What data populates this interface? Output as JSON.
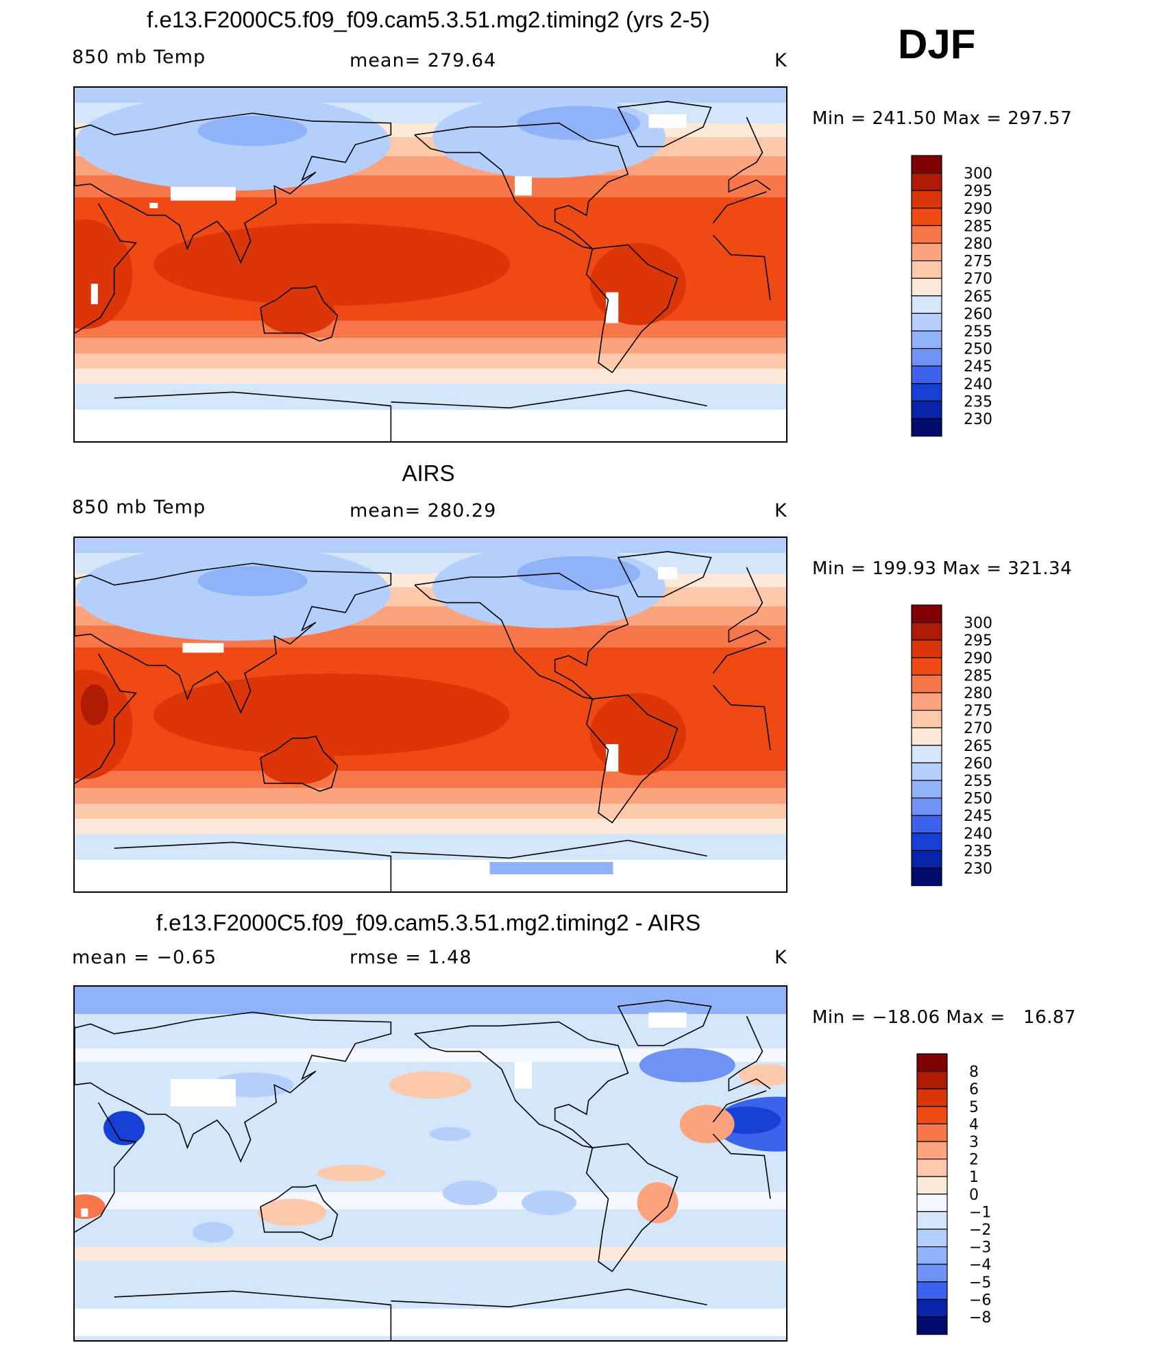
{
  "season": "DJF",
  "panels": [
    {
      "title": "f.e13.F2000C5.f09_f09.cam5.3.51.mg2.timing2 (yrs 2-5)",
      "left_label": "850 mb Temp",
      "center_label": "mean= 279.64",
      "units": "K",
      "range_text": "Min = 241.50 Max = 297.57",
      "map_kind": "model",
      "colorbar": {
        "levels": [
          "300",
          "295",
          "290",
          "285",
          "280",
          "275",
          "270",
          "265",
          "260",
          "255",
          "250",
          "245",
          "240",
          "235",
          "230"
        ],
        "colors": [
          "#7f0000",
          "#b01a04",
          "#dc3608",
          "#f04a14",
          "#f7764a",
          "#fca37e",
          "#fdc9ab",
          "#fde9d9",
          "#d4e6fa",
          "#b4cffb",
          "#8fb2f8",
          "#6f92f4",
          "#3c63ec",
          "#163fd6",
          "#0822a8",
          "#000c6e"
        ]
      }
    },
    {
      "title": "AIRS",
      "left_label": "850 mb Temp",
      "center_label": "mean= 280.29",
      "units": "K",
      "range_text": "Min = 199.93 Max = 321.34",
      "map_kind": "obs",
      "colorbar": {
        "levels": [
          "300",
          "295",
          "290",
          "285",
          "280",
          "275",
          "270",
          "265",
          "260",
          "255",
          "250",
          "245",
          "240",
          "235",
          "230"
        ],
        "colors": [
          "#7f0000",
          "#b01a04",
          "#dc3608",
          "#f04a14",
          "#f7764a",
          "#fca37e",
          "#fdc9ab",
          "#fde9d9",
          "#d4e6fa",
          "#b4cffb",
          "#8fb2f8",
          "#6f92f4",
          "#3c63ec",
          "#163fd6",
          "#0822a8",
          "#000c6e"
        ]
      }
    },
    {
      "title": "f.e13.F2000C5.f09_f09.cam5.3.51.mg2.timing2 - AIRS",
      "left_label": "mean =   −0.65",
      "center_label": "rmse =    1.48",
      "units": "K",
      "range_text": "Min = −18.06 Max =   16.87",
      "map_kind": "diff",
      "colorbar": {
        "levels": [
          "8",
          "6",
          "5",
          "4",
          "3",
          "2",
          "1",
          "0",
          "−1",
          "−2",
          "−3",
          "−4",
          "−5",
          "−6",
          "−8"
        ],
        "colors": [
          "#7f0000",
          "#b01a04",
          "#dc3608",
          "#f04a14",
          "#f7764a",
          "#fca37e",
          "#fdc9ab",
          "#fde9d9",
          "#f6f8ff",
          "#d4e6fa",
          "#b4cffb",
          "#8fb2f8",
          "#6f92f4",
          "#3c63ec",
          "#0822a8",
          "#000c6e"
        ]
      }
    }
  ]
}
